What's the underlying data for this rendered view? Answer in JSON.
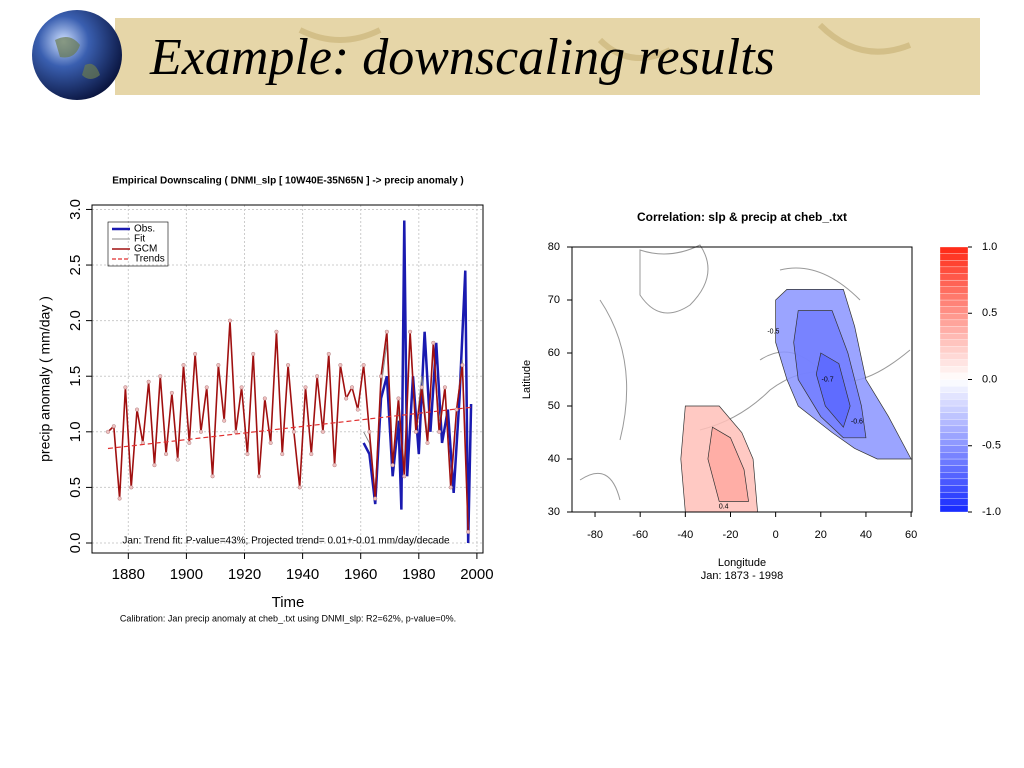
{
  "title": "Example: downscaling results",
  "chart_data": [
    {
      "type": "line",
      "title": "Empirical Downscaling ( DNMI_slp [ 10W40E-35N65N ] -> precip anomaly )",
      "xlabel": "Time",
      "ylabel": "precip anomaly ( mm/day )",
      "annotation": "Jan: Trend fit: P-value=43%; Projected trend= 0.01+-0.01 mm/day/decade",
      "caption": "Calibration: Jan precip anomaly at cheb_.txt using DNMI_slp: R2=62%, p-value=0%.",
      "xlim": [
        1867.5,
        2002.1
      ],
      "ylim": [
        -0.09,
        3.04
      ],
      "xticks": [
        1880,
        1900,
        1920,
        1940,
        1960,
        1980,
        2000
      ],
      "yticks": [
        {
          "value": 0,
          "label": "0.0"
        },
        0.5,
        {
          "value": 1,
          "label": "1.0"
        },
        1.5,
        {
          "value": 2,
          "label": "2.0"
        },
        2.5,
        {
          "value": 3,
          "label": "3.0"
        }
      ],
      "grid": true,
      "legend": "top-left",
      "series": [
        {
          "name": "Obs.",
          "color": "#1a1ab0",
          "width": 2.5,
          "x": [
            1961,
            1963,
            1965,
            1967,
            1969,
            1971,
            1973,
            1974,
            1975,
            1976,
            1978,
            1980,
            1982,
            1984,
            1986,
            1988,
            1990,
            1992,
            1994,
            1996,
            1997,
            1998
          ],
          "values": [
            0.9,
            0.8,
            0.35,
            1.3,
            1.5,
            0.6,
            1.1,
            0.3,
            2.9,
            0.6,
            1.5,
            0.8,
            1.9,
            1.0,
            1.8,
            0.9,
            1.2,
            0.45,
            1.3,
            2.45,
            0.0,
            1.25
          ]
        },
        {
          "name": "Fit",
          "color": "#888888",
          "width": 1,
          "x": [
            1961,
            1963,
            1965,
            1967,
            1969,
            1971,
            1973,
            1975,
            1977,
            1979,
            1981,
            1983,
            1985,
            1987,
            1989,
            1991,
            1993,
            1995,
            1997
          ],
          "values": [
            1.0,
            0.9,
            0.45,
            1.4,
            1.8,
            0.7,
            1.2,
            0.7,
            1.85,
            1.0,
            1.5,
            0.95,
            1.75,
            1.1,
            1.35,
            0.55,
            1.2,
            1.65,
            0.15
          ]
        },
        {
          "name": "GCM",
          "color": "#a01010",
          "width": 1.6,
          "x": [
            1873,
            1875,
            1877,
            1879,
            1881,
            1883,
            1885,
            1887,
            1889,
            1891,
            1893,
            1895,
            1897,
            1899,
            1901,
            1903,
            1905,
            1907,
            1909,
            1911,
            1913,
            1915,
            1917,
            1919,
            1921,
            1923,
            1925,
            1927,
            1929,
            1931,
            1933,
            1935,
            1937,
            1939,
            1941,
            1943,
            1945,
            1947,
            1949,
            1951,
            1953,
            1955,
            1957,
            1959,
            1961,
            1963,
            1965,
            1967,
            1969,
            1971,
            1973,
            1975,
            1977,
            1979,
            1981,
            1983,
            1985,
            1987,
            1989,
            1991,
            1993,
            1995,
            1997
          ],
          "values": [
            1.0,
            1.05,
            0.4,
            1.4,
            0.5,
            1.2,
            0.9,
            1.45,
            0.7,
            1.5,
            0.8,
            1.35,
            0.75,
            1.6,
            0.9,
            1.7,
            1.0,
            1.4,
            0.6,
            1.6,
            1.1,
            2.0,
            1.0,
            1.4,
            0.8,
            1.7,
            0.6,
            1.3,
            0.9,
            1.9,
            0.8,
            1.6,
            1.0,
            0.5,
            1.4,
            0.8,
            1.5,
            1.0,
            1.7,
            0.7,
            1.6,
            1.3,
            1.4,
            1.2,
            1.6,
            1.0,
            0.4,
            1.5,
            1.9,
            0.7,
            1.3,
            0.6,
            1.9,
            1.0,
            1.4,
            0.9,
            1.8,
            1.0,
            1.4,
            0.5,
            1.2,
            1.6,
            0.1
          ]
        },
        {
          "name": "Trends",
          "color": "#e03030",
          "width": 1.2,
          "dash": true,
          "x": [
            1873,
            1998
          ],
          "values": [
            0.85,
            1.22
          ]
        }
      ]
    },
    {
      "type": "contour",
      "title": "Correlation: slp & precip at cheb_.txt",
      "xlabel": "Longitude",
      "note": "Jan: 1873 - 1998",
      "ylabel": "Latitude",
      "xlim": [
        -90.2,
        60.4
      ],
      "ylim": [
        30,
        80
      ],
      "xticks": [
        -80,
        -60,
        -40,
        -20,
        0,
        20,
        40,
        60
      ],
      "yticks": [
        30,
        40,
        50,
        60,
        70,
        80
      ],
      "colorbar": {
        "lim": [
          -1,
          1
        ],
        "ticks": [
          {
            "value": 1,
            "label": "1.0"
          },
          0.5,
          {
            "value": 0,
            "label": "0.0"
          },
          -0.5,
          {
            "value": -1,
            "label": "-1.0"
          }
        ]
      },
      "regions": [
        {
          "value": -0.5,
          "label": "-0.5",
          "label_at": [
            -1,
            64
          ],
          "points": [
            [
              0,
              70
            ],
            [
              5,
              72
            ],
            [
              30,
              72
            ],
            [
              35,
              65
            ],
            [
              40,
              55
            ],
            [
              50,
              48
            ],
            [
              60,
              40
            ],
            [
              45,
              40
            ],
            [
              35,
              42
            ],
            [
              25,
              45
            ],
            [
              10,
              50
            ],
            [
              5,
              55
            ],
            [
              0,
              62
            ]
          ]
        },
        {
          "value": -0.6,
          "label": "-0.6",
          "label_at": [
            36,
            47
          ],
          "points": [
            [
              10,
              68
            ],
            [
              25,
              68
            ],
            [
              32,
              60
            ],
            [
              38,
              50
            ],
            [
              40,
              44
            ],
            [
              30,
              44
            ],
            [
              20,
              48
            ],
            [
              10,
              55
            ],
            [
              8,
              62
            ]
          ]
        },
        {
          "value": -0.7,
          "label": "-0.7",
          "label_at": [
            23,
            55
          ],
          "points": [
            [
              20,
              60
            ],
            [
              28,
              58
            ],
            [
              33,
              50
            ],
            [
              30,
              46
            ],
            [
              22,
              50
            ],
            [
              18,
              56
            ]
          ]
        },
        {
          "value": 0.3,
          "label": null,
          "label_at": null,
          "points": [
            [
              -40,
              50
            ],
            [
              -25,
              50
            ],
            [
              -15,
              45
            ],
            [
              -10,
              40
            ],
            [
              -8,
              30
            ],
            [
              -40,
              30
            ],
            [
              -42,
              40
            ]
          ]
        },
        {
          "value": 0.4,
          "label": "0.4",
          "label_at": [
            -23,
            31
          ],
          "points": [
            [
              -28,
              46
            ],
            [
              -20,
              44
            ],
            [
              -14,
              38
            ],
            [
              -12,
              32
            ],
            [
              -25,
              32
            ],
            [
              -30,
              40
            ]
          ]
        }
      ]
    }
  ]
}
